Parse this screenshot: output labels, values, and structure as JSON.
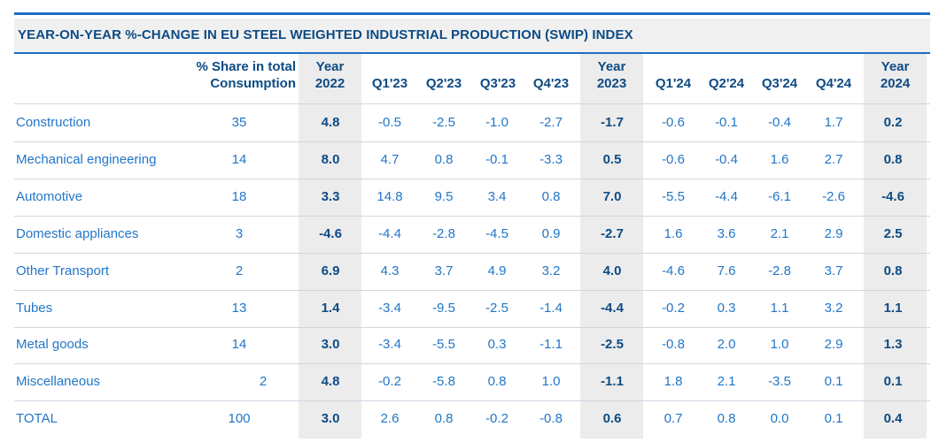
{
  "title": "YEAR-ON-YEAR %-CHANGE IN EU STEEL WEIGHTED INDUSTRIAL PRODUCTION  (SWIP) INDEX",
  "headers": {
    "share_line1": "% Share in total",
    "share_line2": "Consumption",
    "y2022_line1": "Year",
    "y2022_line2": "2022",
    "q1_23": "Q1'23",
    "q2_23": "Q2'23",
    "q3_23": "Q3'23",
    "q4_23": "Q4'23",
    "y2023_line1": "Year",
    "y2023_line2": "2023",
    "q1_24": "Q1'24",
    "q2_24": "Q2'24",
    "q3_24": "Q3'24",
    "q4_24": "Q4'24",
    "y2024_line1": "Year",
    "y2024_line2": "2024"
  },
  "rows": [
    {
      "sector": "Construction",
      "share": "35",
      "y2022": "4.8",
      "q1_23": "-0.5",
      "q2_23": "-2.5",
      "q3_23": "-1.0",
      "q4_23": "-2.7",
      "y2023": "-1.7",
      "q1_24": "-0.6",
      "q2_24": "-0.1",
      "q3_24": "-0.4",
      "q4_24": "1.7",
      "y2024": "0.2"
    },
    {
      "sector": "Mechanical engineering",
      "share": "14",
      "y2022": "8.0",
      "q1_23": "4.7",
      "q2_23": "0.8",
      "q3_23": "-0.1",
      "q4_23": "-3.3",
      "y2023": "0.5",
      "q1_24": "-0.6",
      "q2_24": "-0.4",
      "q3_24": "1.6",
      "q4_24": "2.7",
      "y2024": "0.8"
    },
    {
      "sector": "Automotive",
      "share": "18",
      "y2022": "3.3",
      "q1_23": "14.8",
      "q2_23": "9.5",
      "q3_23": "3.4",
      "q4_23": "0.8",
      "y2023": "7.0",
      "q1_24": "-5.5",
      "q2_24": "-4.4",
      "q3_24": "-6.1",
      "q4_24": "-2.6",
      "y2024": "-4.6"
    },
    {
      "sector": "Domestic appliances",
      "share": "3",
      "y2022": "-4.6",
      "q1_23": "-4.4",
      "q2_23": "-2.8",
      "q3_23": "-4.5",
      "q4_23": "0.9",
      "y2023": "-2.7",
      "q1_24": "1.6",
      "q2_24": "3.6",
      "q3_24": "2.1",
      "q4_24": "2.9",
      "y2024": "2.5"
    },
    {
      "sector": "Other Transport",
      "share": "2",
      "y2022": "6.9",
      "q1_23": "4.3",
      "q2_23": "3.7",
      "q3_23": "4.9",
      "q4_23": "3.2",
      "y2023": "4.0",
      "q1_24": "-4.6",
      "q2_24": "7.6",
      "q3_24": "-2.8",
      "q4_24": "3.7",
      "y2024": "0.8"
    },
    {
      "sector": "Tubes",
      "share": "13",
      "y2022": "1.4",
      "q1_23": "-3.4",
      "q2_23": "-9.5",
      "q3_23": "-2.5",
      "q4_23": "-1.4",
      "y2023": "-4.4",
      "q1_24": "-0.2",
      "q2_24": "0.3",
      "q3_24": "1.1",
      "q4_24": "3.2",
      "y2024": "1.1"
    },
    {
      "sector": "Metal goods",
      "share": "14",
      "y2022": "3.0",
      "q1_23": "-3.4",
      "q2_23": "-5.5",
      "q3_23": "0.3",
      "q4_23": "-1.1",
      "y2023": "-2.5",
      "q1_24": "-0.8",
      "q2_24": "2.0",
      "q3_24": "1.0",
      "q4_24": "2.9",
      "y2024": "1.3"
    },
    {
      "sector": "Miscellaneous",
      "share": "2",
      "y2022": "4.8",
      "q1_23": "-0.2",
      "q2_23": "-5.8",
      "q3_23": "0.8",
      "q4_23": "1.0",
      "y2023": "-1.1",
      "q1_24": "1.8",
      "q2_24": "2.1",
      "q3_24": "-3.5",
      "q4_24": "0.1",
      "y2024": "0.1"
    },
    {
      "sector": "TOTAL",
      "share": "100",
      "y2022": "3.0",
      "q1_23": "2.6",
      "q2_23": "0.8",
      "q3_23": "-0.2",
      "q4_23": "-0.8",
      "y2023": "0.6",
      "q1_24": "0.7",
      "q2_24": "0.8",
      "q3_24": "0.0",
      "q4_24": "0.1",
      "y2024": "0.4"
    }
  ],
  "colors": {
    "accent": "#1a6fc4",
    "dark": "#0d4b84",
    "text": "#2276c8",
    "shade": "#ececec"
  }
}
